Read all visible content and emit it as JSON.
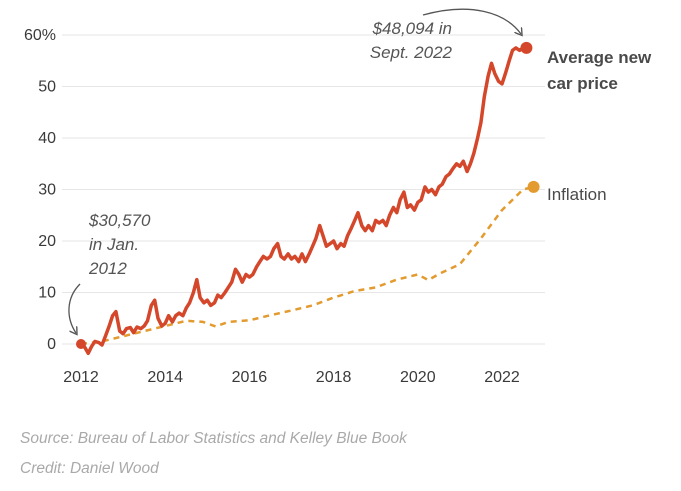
{
  "chart_data": {
    "type": "line",
    "title": "",
    "xlabel": "",
    "ylabel": "",
    "y_unit_suffix": "%",
    "xlim": [
      2012,
      2022.75
    ],
    "ylim": [
      0,
      60
    ],
    "x_ticks": [
      2012,
      2014,
      2016,
      2018,
      2020,
      2022
    ],
    "y_ticks": [
      0,
      10,
      20,
      30,
      40,
      50,
      60
    ],
    "grid": "horizontal",
    "legend": "direct labels at line ends",
    "series": [
      {
        "name": "Average new car price",
        "color": "#d4472a",
        "style": "solid",
        "points": [
          [
            2012.0,
            0
          ],
          [
            2012.08,
            -0.5
          ],
          [
            2012.17,
            -1.8
          ],
          [
            2012.25,
            -0.5
          ],
          [
            2012.33,
            0.5
          ],
          [
            2012.42,
            0.3
          ],
          [
            2012.5,
            -0.2
          ],
          [
            2012.58,
            1.5
          ],
          [
            2012.67,
            3.5
          ],
          [
            2012.75,
            5.5
          ],
          [
            2012.83,
            6.3
          ],
          [
            2012.92,
            2.5
          ],
          [
            2013.0,
            2.0
          ],
          [
            2013.08,
            3.0
          ],
          [
            2013.17,
            3.2
          ],
          [
            2013.25,
            2.2
          ],
          [
            2013.33,
            3.3
          ],
          [
            2013.42,
            3.0
          ],
          [
            2013.5,
            3.5
          ],
          [
            2013.58,
            4.5
          ],
          [
            2013.67,
            7.5
          ],
          [
            2013.75,
            8.5
          ],
          [
            2013.83,
            5.0
          ],
          [
            2013.92,
            3.5
          ],
          [
            2014.0,
            4.0
          ],
          [
            2014.08,
            5.5
          ],
          [
            2014.17,
            4.3
          ],
          [
            2014.25,
            5.5
          ],
          [
            2014.33,
            6.0
          ],
          [
            2014.42,
            5.5
          ],
          [
            2014.5,
            7.0
          ],
          [
            2014.58,
            8.0
          ],
          [
            2014.67,
            10.0
          ],
          [
            2014.75,
            12.5
          ],
          [
            2014.83,
            9.0
          ],
          [
            2014.92,
            8.0
          ],
          [
            2015.0,
            8.5
          ],
          [
            2015.08,
            7.5
          ],
          [
            2015.17,
            8.0
          ],
          [
            2015.25,
            9.5
          ],
          [
            2015.33,
            9.0
          ],
          [
            2015.42,
            10.0
          ],
          [
            2015.5,
            11.0
          ],
          [
            2015.58,
            12.0
          ],
          [
            2015.67,
            14.5
          ],
          [
            2015.75,
            13.5
          ],
          [
            2015.83,
            12.0
          ],
          [
            2015.92,
            13.5
          ],
          [
            2016.0,
            13.0
          ],
          [
            2016.08,
            13.5
          ],
          [
            2016.17,
            15.0
          ],
          [
            2016.25,
            16.0
          ],
          [
            2016.33,
            17.0
          ],
          [
            2016.42,
            16.5
          ],
          [
            2016.5,
            17.0
          ],
          [
            2016.58,
            18.5
          ],
          [
            2016.67,
            19.5
          ],
          [
            2016.75,
            17.0
          ],
          [
            2016.83,
            16.5
          ],
          [
            2016.92,
            17.5
          ],
          [
            2017.0,
            16.5
          ],
          [
            2017.08,
            17.0
          ],
          [
            2017.17,
            16.0
          ],
          [
            2017.25,
            17.5
          ],
          [
            2017.33,
            16.0
          ],
          [
            2017.42,
            17.5
          ],
          [
            2017.5,
            19.0
          ],
          [
            2017.58,
            20.5
          ],
          [
            2017.67,
            23.0
          ],
          [
            2017.75,
            21.0
          ],
          [
            2017.83,
            19.0
          ],
          [
            2017.92,
            19.5
          ],
          [
            2018.0,
            20.0
          ],
          [
            2018.08,
            18.5
          ],
          [
            2018.17,
            19.5
          ],
          [
            2018.25,
            19.0
          ],
          [
            2018.33,
            21.0
          ],
          [
            2018.42,
            22.5
          ],
          [
            2018.5,
            24.0
          ],
          [
            2018.58,
            25.5
          ],
          [
            2018.67,
            23.0
          ],
          [
            2018.75,
            22.0
          ],
          [
            2018.83,
            23.0
          ],
          [
            2018.92,
            22.0
          ],
          [
            2019.0,
            24.0
          ],
          [
            2019.08,
            23.5
          ],
          [
            2019.17,
            24.0
          ],
          [
            2019.25,
            23.0
          ],
          [
            2019.33,
            25.0
          ],
          [
            2019.42,
            26.5
          ],
          [
            2019.5,
            25.5
          ],
          [
            2019.58,
            28.0
          ],
          [
            2019.67,
            29.5
          ],
          [
            2019.75,
            26.5
          ],
          [
            2019.83,
            27.0
          ],
          [
            2019.92,
            26.0
          ],
          [
            2020.0,
            27.5
          ],
          [
            2020.08,
            28.0
          ],
          [
            2020.17,
            30.5
          ],
          [
            2020.25,
            29.5
          ],
          [
            2020.33,
            30.0
          ],
          [
            2020.42,
            29.0
          ],
          [
            2020.5,
            30.5
          ],
          [
            2020.58,
            31.0
          ],
          [
            2020.67,
            32.5
          ],
          [
            2020.75,
            33.0
          ],
          [
            2020.83,
            34.0
          ],
          [
            2020.92,
            35.0
          ],
          [
            2021.0,
            34.5
          ],
          [
            2021.08,
            35.5
          ],
          [
            2021.17,
            33.5
          ],
          [
            2021.25,
            35.0
          ],
          [
            2021.33,
            37.0
          ],
          [
            2021.42,
            40.0
          ],
          [
            2021.5,
            43.0
          ],
          [
            2021.58,
            48.0
          ],
          [
            2021.67,
            52.0
          ],
          [
            2021.75,
            54.5
          ],
          [
            2021.83,
            52.5
          ],
          [
            2021.92,
            51.0
          ],
          [
            2022.0,
            50.5
          ],
          [
            2022.08,
            52.5
          ],
          [
            2022.17,
            55.0
          ],
          [
            2022.25,
            57.0
          ],
          [
            2022.33,
            57.5
          ],
          [
            2022.42,
            57.0
          ],
          [
            2022.5,
            57.5
          ],
          [
            2022.58,
            57.5
          ]
        ]
      },
      {
        "name": "Inflation",
        "color": "#e39a2e",
        "style": "dashed",
        "points": [
          [
            2012.0,
            0
          ],
          [
            2012.5,
            0.5
          ],
          [
            2013.0,
            1.5
          ],
          [
            2013.5,
            2.5
          ],
          [
            2014.0,
            3.5
          ],
          [
            2014.5,
            4.5
          ],
          [
            2014.9,
            4.3
          ],
          [
            2015.2,
            3.4
          ],
          [
            2015.5,
            4.3
          ],
          [
            2016.0,
            4.6
          ],
          [
            2016.5,
            5.6
          ],
          [
            2017.0,
            6.5
          ],
          [
            2017.5,
            7.5
          ],
          [
            2018.0,
            9.0
          ],
          [
            2018.5,
            10.3
          ],
          [
            2019.0,
            11.0
          ],
          [
            2019.5,
            12.5
          ],
          [
            2020.0,
            13.5
          ],
          [
            2020.25,
            12.4
          ],
          [
            2020.5,
            13.6
          ],
          [
            2021.0,
            15.5
          ],
          [
            2021.5,
            20.5
          ],
          [
            2022.0,
            26.0
          ],
          [
            2022.5,
            30.0
          ],
          [
            2022.75,
            30.5
          ]
        ]
      }
    ],
    "endpoint_labels": {
      "Average new car price": [
        "Average new",
        "car price"
      ],
      "Inflation": [
        "Inflation"
      ]
    },
    "annotations": [
      {
        "lines": [
          "$48,094 in",
          "Sept. 2022"
        ],
        "target": [
          2022.58,
          57.5
        ]
      },
      {
        "lines": [
          "$30,570",
          "in Jan.",
          "2012"
        ],
        "target": [
          2012.0,
          0
        ]
      }
    ]
  },
  "footer": {
    "source": "Source: Bureau of Labor Statistics and Kelley Blue Book",
    "credit": "Credit: Daniel Wood"
  }
}
